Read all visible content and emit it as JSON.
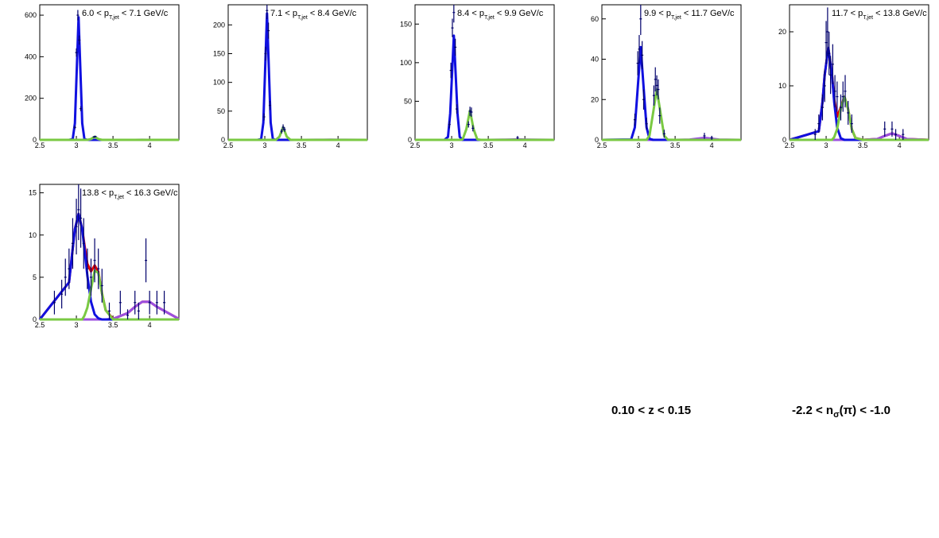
{
  "chart_data": [
    {
      "type": "line",
      "label_prefix": "6.0 < p",
      "label_sub": "T,jet",
      "label_suffix": " < 7.1 GeV/c",
      "xlim": [
        2.5,
        4.4
      ],
      "xticks": [
        2.5,
        3,
        3.5,
        4
      ],
      "ylim": [
        0,
        650
      ],
      "yticks": [
        0,
        200,
        400,
        600
      ],
      "x": [
        2.5,
        2.9,
        2.95,
        2.98,
        3.03,
        3.08,
        3.11,
        3.15,
        3.2,
        3.25,
        3.3,
        3.35,
        3.4,
        3.5,
        3.7,
        3.8,
        3.9,
        4.0,
        4.1,
        4.4
      ],
      "series": [
        {
          "color": "#9b4fe0",
          "values": [
            0,
            0,
            0,
            0,
            0,
            0,
            0,
            0,
            0,
            0,
            0,
            0,
            0,
            0,
            0.1,
            0.2,
            0.3,
            0.2,
            0.1,
            0
          ]
        },
        {
          "color": "#1010e0",
          "values": [
            0,
            0,
            3.5,
            80,
            590,
            80,
            3.5,
            0,
            0,
            0,
            0,
            0,
            0,
            0,
            0,
            0,
            0,
            0,
            0,
            0
          ]
        },
        {
          "color": "#7ac943",
          "values": [
            0,
            0,
            0,
            0,
            0,
            0,
            0,
            0,
            4,
            15,
            4,
            0.1,
            0,
            0,
            0,
            0,
            0,
            0,
            0,
            0
          ]
        }
      ],
      "points": {
        "color": "#00006b",
        "x": [
          2.98,
          3.0,
          3.02,
          3.04,
          3.06,
          3.24,
          3.26
        ],
        "values": [
          60,
          420,
          600,
          480,
          150,
          14,
          16
        ],
        "errors": [
          8,
          20,
          25,
          22,
          12,
          4,
          4
        ]
      }
    },
    {
      "type": "line",
      "label_prefix": "7.1 < p",
      "label_sub": "T,jet",
      "label_suffix": " < 8.4 GeV/c",
      "xlim": [
        2.5,
        4.4
      ],
      "xticks": [
        2.5,
        3,
        3.5,
        4
      ],
      "ylim": [
        0,
        235
      ],
      "yticks": [
        0,
        50,
        100,
        150,
        200
      ],
      "x": [
        2.5,
        2.9,
        2.95,
        2.98,
        3.03,
        3.08,
        3.11,
        3.15,
        3.2,
        3.25,
        3.3,
        3.35,
        3.4,
        3.5,
        3.7,
        3.8,
        3.9,
        4.0,
        4.1,
        4.4
      ],
      "series": [
        {
          "color": "#9b4fe0",
          "values": [
            0,
            0,
            0,
            0,
            0,
            0,
            0,
            0,
            0,
            0,
            0,
            0,
            0,
            0,
            0.1,
            0.2,
            0.3,
            0.2,
            0.1,
            0
          ]
        },
        {
          "color": "#1010e0",
          "values": [
            0,
            0,
            1.3,
            30,
            220,
            30,
            1.3,
            0,
            0,
            0,
            0,
            0,
            0,
            0,
            0,
            0,
            0,
            0,
            0,
            0
          ]
        },
        {
          "color": "#7ac943",
          "values": [
            0,
            0,
            0,
            0,
            0,
            0,
            0,
            0,
            5.5,
            22,
            5.5,
            0.1,
            0,
            0,
            0,
            0,
            0,
            0,
            0,
            0
          ]
        }
      ],
      "points": {
        "color": "#00006b",
        "x": [
          2.99,
          3.01,
          3.03,
          3.05,
          3.07,
          3.23,
          3.25,
          3.27
        ],
        "values": [
          40,
          150,
          225,
          190,
          60,
          15,
          22,
          18
        ],
        "errors": [
          6,
          12,
          15,
          14,
          8,
          4,
          5,
          4
        ]
      }
    },
    {
      "type": "line",
      "label_prefix": "8.4 < p",
      "label_sub": "T,jet",
      "label_suffix": " < 9.9 GeV/c",
      "xlim": [
        2.5,
        4.4
      ],
      "xticks": [
        2.5,
        3,
        3.5,
        4
      ],
      "ylim": [
        0,
        175
      ],
      "yticks": [
        0,
        50,
        100,
        150
      ],
      "x": [
        2.5,
        2.9,
        2.95,
        2.98,
        3.03,
        3.08,
        3.11,
        3.15,
        3.2,
        3.25,
        3.3,
        3.35,
        3.4,
        3.5,
        3.7,
        3.8,
        3.9,
        4.0,
        4.1,
        4.4
      ],
      "series": [
        {
          "color": "#9b4fe0",
          "values": [
            0,
            0,
            0,
            0,
            0,
            0,
            0,
            0,
            0,
            0,
            0,
            0,
            0,
            0,
            0.2,
            0.4,
            0.6,
            0.4,
            0.2,
            0
          ]
        },
        {
          "color": "#1010e0",
          "values": [
            0,
            0,
            3.8,
            34,
            135,
            34,
            3.8,
            0,
            0,
            0,
            0,
            0,
            0,
            0,
            0,
            0,
            0,
            0,
            0,
            0
          ]
        },
        {
          "color": "#7ac943",
          "values": [
            0,
            0,
            0,
            0,
            0,
            0,
            0,
            0.6,
            13.7,
            38,
            13.7,
            0.6,
            0,
            0,
            0,
            0,
            0,
            0,
            0,
            0
          ]
        }
      ],
      "points": {
        "color": "#00006b",
        "x": [
          2.97,
          2.99,
          3.01,
          3.03,
          3.05,
          3.07,
          3.23,
          3.25,
          3.27,
          3.29,
          3.9
        ],
        "values": [
          20,
          90,
          145,
          165,
          120,
          40,
          20,
          37,
          36,
          15,
          3
        ],
        "errors": [
          5,
          10,
          12,
          13,
          11,
          6,
          4,
          6,
          6,
          4,
          2
        ]
      }
    },
    {
      "type": "line",
      "label_prefix": "9.9 < p",
      "label_sub": "T,jet",
      "label_suffix": " < 11.7 GeV/c",
      "xlim": [
        2.5,
        4.4
      ],
      "xticks": [
        2.5,
        3,
        3.5,
        4
      ],
      "ylim": [
        0,
        67
      ],
      "yticks": [
        0,
        20,
        40,
        60
      ],
      "x": [
        2.5,
        2.9,
        2.95,
        2.98,
        3.03,
        3.08,
        3.11,
        3.15,
        3.2,
        3.25,
        3.3,
        3.35,
        3.4,
        3.5,
        3.7,
        3.8,
        3.9,
        4.0,
        4.1,
        4.4
      ],
      "series": [
        {
          "color": "#9b4fe0",
          "values": [
            0,
            0,
            0,
            0,
            0,
            0,
            0,
            0,
            0,
            0,
            0,
            0,
            0,
            0,
            0.135,
            0.6,
            1,
            0.6,
            0.135,
            0
          ]
        },
        {
          "color": "#1010e0",
          "values": [
            0,
            0.2,
            6.2,
            21,
            46,
            21,
            6.2,
            0.5,
            0,
            0,
            0,
            0,
            0,
            0,
            0,
            0,
            0,
            0,
            0,
            0
          ]
        },
        {
          "color": "#7ac943",
          "values": [
            0,
            0,
            0,
            0,
            0,
            0,
            0,
            2.1,
            13.5,
            25,
            13.5,
            2.1,
            0.1,
            0,
            0,
            0,
            0,
            0,
            0,
            0
          ]
        }
      ],
      "points": {
        "color": "#00006b",
        "x": [
          2.95,
          2.99,
          3.01,
          3.03,
          3.05,
          3.07,
          3.11,
          3.21,
          3.23,
          3.25,
          3.27,
          3.29,
          3.35,
          3.9,
          4.0
        ],
        "values": [
          10,
          38,
          45,
          60,
          42,
          20,
          8,
          22,
          30,
          27,
          25,
          12,
          3,
          2,
          1
        ],
        "errors": [
          3,
          6,
          7,
          8,
          7,
          5,
          3,
          5,
          6,
          5,
          5,
          4,
          2,
          1.5,
          1
        ]
      }
    },
    {
      "type": "line",
      "label_prefix": "11.7 < p",
      "label_sub": "T,jet",
      "label_suffix": " < 13.8 GeV/c",
      "xlim": [
        2.5,
        4.4
      ],
      "xticks": [
        2.5,
        3,
        3.5,
        4
      ],
      "ylim": [
        0,
        25
      ],
      "yticks": [
        0,
        10,
        20
      ],
      "x": [
        2.5,
        2.9,
        2.95,
        2.98,
        3.03,
        3.08,
        3.11,
        3.15,
        3.2,
        3.25,
        3.3,
        3.35,
        3.4,
        3.5,
        3.7,
        3.8,
        3.9,
        4.0,
        4.1,
        4.4
      ],
      "series": [
        {
          "color": "#e00000",
          "values": [
            0,
            1.6,
            7,
            12,
            17,
            12,
            7.5,
            4.3,
            6,
            8,
            5.7,
            2,
            0.35,
            0,
            0.16,
            0.73,
            1.2,
            0.73,
            0.16,
            0
          ]
        },
        {
          "color": "#9b4fe0",
          "values": [
            0,
            0,
            0,
            0,
            0,
            0,
            0,
            0,
            0,
            0,
            0,
            0,
            0,
            0,
            0.16,
            0.73,
            1.2,
            0.73,
            0.16,
            0
          ]
        },
        {
          "color": "#1010e0",
          "values": [
            0,
            1.6,
            7,
            12,
            17,
            12,
            7,
            2.3,
            0.3,
            0,
            0,
            0,
            0,
            0,
            0,
            0,
            0,
            0,
            0,
            0
          ]
        },
        {
          "color": "#7ac943",
          "values": [
            0,
            0,
            0,
            0,
            0,
            0,
            0.5,
            2,
            5.7,
            8,
            5.7,
            2,
            0.35,
            0,
            0,
            0,
            0,
            0,
            0,
            0
          ]
        }
      ],
      "points": {
        "color": "#00006b",
        "x": [
          2.85,
          2.9,
          2.95,
          2.98,
          3.0,
          3.02,
          3.04,
          3.06,
          3.09,
          3.12,
          3.15,
          3.2,
          3.23,
          3.26,
          3.3,
          3.35,
          3.8,
          3.9,
          3.95,
          4.05
        ],
        "values": [
          1,
          3,
          6,
          10,
          18,
          20,
          16,
          12,
          14,
          9,
          8,
          6,
          8,
          9,
          5,
          3,
          2,
          2,
          1,
          1
        ],
        "errors": [
          1,
          1.7,
          2.4,
          3,
          4,
          4.5,
          4,
          3.5,
          3.7,
          3,
          2.8,
          2.4,
          2.8,
          3,
          2.2,
          1.7,
          1.4,
          1.4,
          1,
          1
        ]
      }
    },
    {
      "type": "line",
      "label_prefix": "13.8 < p",
      "label_sub": "T,jet",
      "label_suffix": " < 16.3 GeV/c",
      "xlim": [
        2.5,
        4.4
      ],
      "xticks": [
        2.5,
        3,
        3.5,
        4
      ],
      "ylim": [
        0,
        16
      ],
      "yticks": [
        0,
        5,
        10,
        15
      ],
      "x": [
        2.5,
        2.9,
        2.95,
        2.98,
        3.03,
        3.08,
        3.11,
        3.15,
        3.2,
        3.25,
        3.3,
        3.35,
        3.4,
        3.5,
        3.7,
        3.8,
        3.9,
        4.0,
        4.1,
        4.4
      ],
      "series": [
        {
          "color": "#e00000",
          "values": [
            0,
            4.4,
            8.4,
            10.7,
            12.5,
            10.7,
            8.85,
            6.6,
            5.7,
            6.4,
            5.64,
            3.1,
            1.1,
            0.07,
            0.75,
            1.5,
            2.1,
            2.1,
            1.5,
            0.07
          ]
        },
        {
          "color": "#9b4fe0",
          "values": [
            0,
            0,
            0,
            0,
            0,
            0,
            0,
            0,
            0,
            0,
            0,
            0,
            0,
            0.07,
            0.75,
            1.5,
            2.1,
            2.1,
            1.5,
            0.07
          ]
        },
        {
          "color": "#1010e0",
          "values": [
            0,
            4.4,
            8.4,
            10.7,
            12.5,
            10.7,
            8.4,
            5.2,
            2.1,
            0.6,
            0.14,
            0,
            0,
            0,
            0,
            0,
            0,
            0,
            0,
            0
          ]
        },
        {
          "color": "#7ac943",
          "values": [
            0,
            0,
            0,
            0,
            0,
            0,
            0.45,
            1.4,
            3.6,
            5.8,
            5.5,
            3.1,
            1.1,
            0,
            0,
            0,
            0,
            0,
            0,
            0
          ]
        }
      ],
      "points": {
        "color": "#00006b",
        "x": [
          2.7,
          2.8,
          2.85,
          2.9,
          2.95,
          3.0,
          3.03,
          3.06,
          3.1,
          3.15,
          3.2,
          3.25,
          3.3,
          3.35,
          3.45,
          3.6,
          3.7,
          3.8,
          3.85,
          3.95,
          4.0,
          4.1,
          4.2
        ],
        "values": [
          2,
          3,
          5,
          6,
          9,
          11,
          13,
          12,
          9,
          6,
          5,
          7,
          6,
          4,
          1,
          2,
          0.5,
          2,
          1,
          7,
          2,
          2,
          2
        ],
        "errors": [
          1.4,
          1.7,
          2.2,
          2.4,
          3,
          3.3,
          3.6,
          3.5,
          3,
          2.4,
          2.2,
          2.6,
          2.4,
          2,
          1,
          1.4,
          0.7,
          1.4,
          1,
          2.6,
          1.4,
          1.4,
          1.4
        ]
      }
    }
  ],
  "footer": {
    "z_range": "0.10 < z < 0.15",
    "nsigma_prefix": "-2.2 < n",
    "nsigma_sub": "σ",
    "nsigma_suffix": "(π) < -1.0"
  }
}
